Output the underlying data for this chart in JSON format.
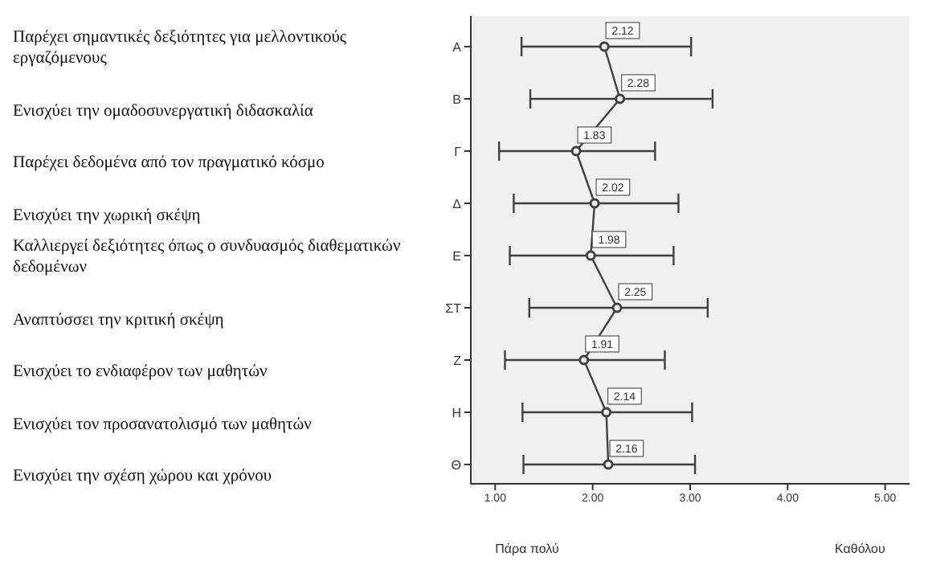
{
  "chart_data": {
    "type": "line",
    "orientation": "horizontal",
    "categories": [
      "Α",
      "Β",
      "Γ",
      "Δ",
      "Ε",
      "ΣΤ",
      "Ζ",
      "Η",
      "Θ"
    ],
    "values": [
      2.12,
      2.28,
      1.83,
      2.02,
      1.98,
      2.25,
      1.91,
      2.14,
      2.16
    ],
    "errors": [
      [
        1.27,
        3.01
      ],
      [
        1.36,
        3.23
      ],
      [
        1.04,
        2.64
      ],
      [
        1.19,
        2.88
      ],
      [
        1.15,
        2.83
      ],
      [
        1.35,
        3.18
      ],
      [
        1.1,
        2.74
      ],
      [
        1.28,
        3.02
      ],
      [
        1.29,
        3.05
      ]
    ],
    "color": "#404040",
    "marker": "circle",
    "data_labels": true,
    "grid": false,
    "xlim": [
      0.75,
      5.25
    ],
    "xticks": [
      {
        "value": 1,
        "label": "1.00"
      },
      {
        "value": 2,
        "label": "2.00"
      },
      {
        "value": 3,
        "label": "3.00"
      },
      {
        "value": 4,
        "label": "4.00"
      },
      {
        "value": 5,
        "label": "5.00"
      }
    ],
    "annotations": [
      "Παρέχει σημαντικές δεξιότητες για μελλοντικούς εργαζόμενους",
      "Ενισχύει την ομαδοσυνεργατική διδασκαλία",
      "Παρέχει δεδομένα από τον πραγματικό  κόσμο",
      "Ενισχύει την χωρική σκέψη",
      "Καλλιεργεί δεξιότητες όπως ο συνδυασμός διαθεματικών δεδομένων",
      "Αναπτύσσει την κριτική σκέψη",
      "Ενισχύει το ενδιαφέρον των μαθητών",
      "Ενισχύει τον προσανατολισμό  των μαθητών",
      "Ενισχύει την σχέση χώρου και χρόνου",
      "Πάρα πολύ",
      "Καθόλου"
    ]
  }
}
